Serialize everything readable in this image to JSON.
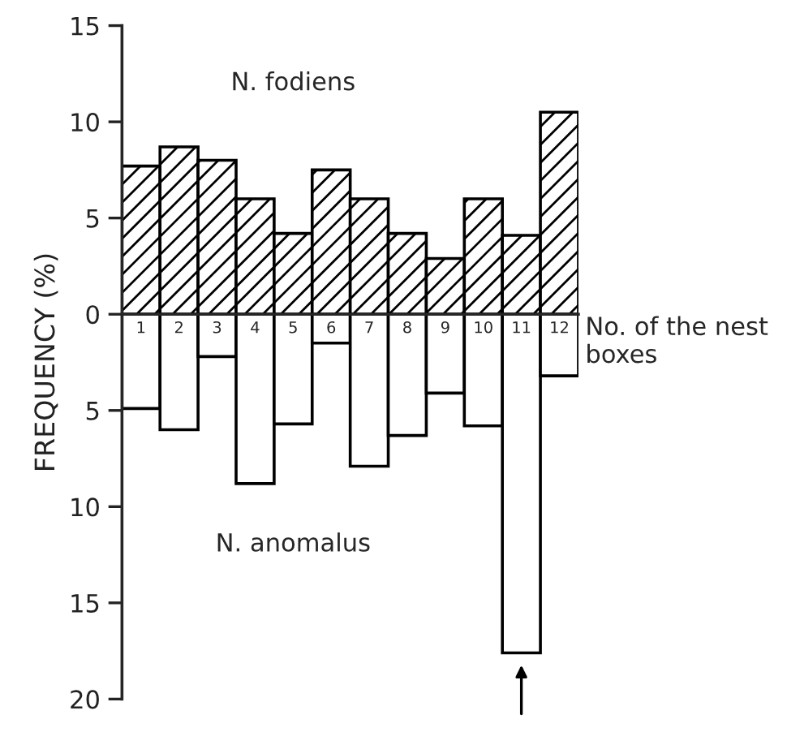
{
  "chart_data": {
    "type": "bar",
    "ylabel": "FREQUENCY (%)",
    "xlabel": "No. of the nest boxes",
    "categories": [
      "1",
      "2",
      "3",
      "4",
      "5",
      "6",
      "7",
      "8",
      "9",
      "10",
      "11",
      "12"
    ],
    "series": [
      {
        "name": "N. fodiens",
        "color": "#000000",
        "values": [
          7.7,
          8.7,
          8.0,
          6.0,
          4.2,
          7.5,
          6.0,
          4.2,
          2.9,
          6.0,
          4.1,
          10.5
        ]
      },
      {
        "name": "N. anomalus",
        "color": "#000000",
        "values": [
          -4.9,
          -6.0,
          -2.2,
          -8.8,
          -5.7,
          -1.5,
          -7.9,
          -6.3,
          -4.1,
          -5.8,
          -17.6,
          -3.2
        ]
      }
    ],
    "ylim": [
      -20,
      15
    ],
    "yticks": [
      15,
      10,
      5,
      0,
      {
        "value": -5,
        "label": "5"
      },
      {
        "value": -10,
        "label": "10"
      },
      {
        "value": -15,
        "label": "15"
      },
      {
        "value": -20,
        "label": "20"
      }
    ],
    "stacked": true,
    "grid": false,
    "legend": false
  }
}
